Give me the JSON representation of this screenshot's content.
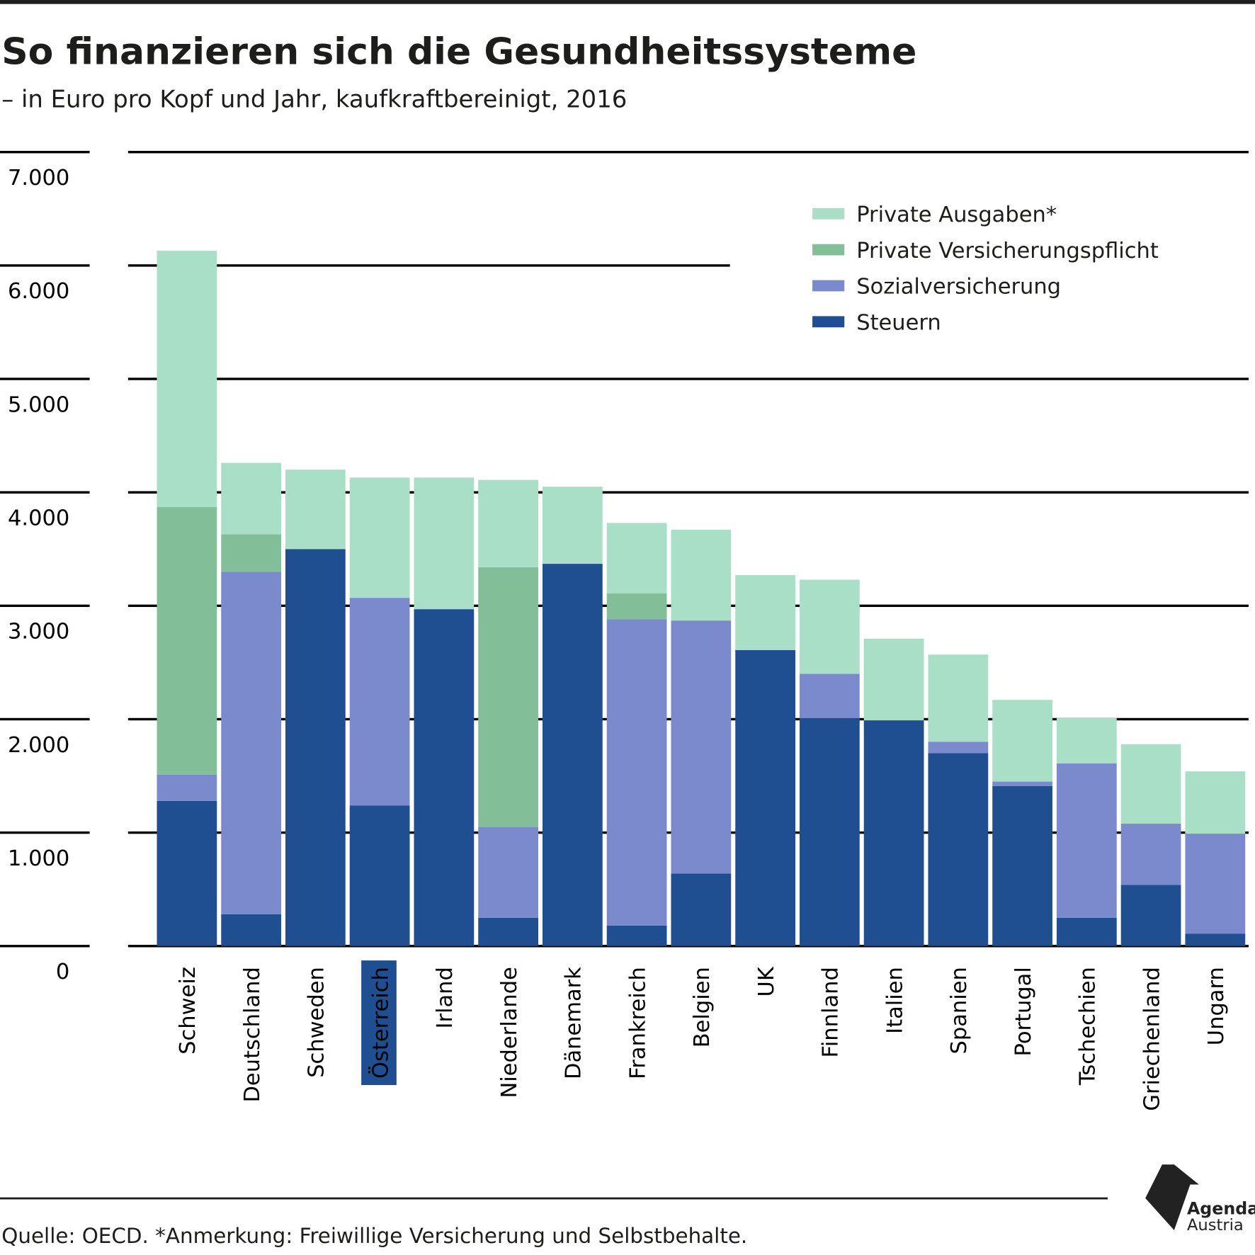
{
  "title": "So finanzieren sich die Gesundheitssysteme",
  "subtitle": "– in Euro pro Kopf und Jahr, kaufkraftbereinigt, 2016",
  "source": "Quelle: OECD. *Anmerkung: Freiwillige Versicherung und Selbstbehalte.",
  "logo": {
    "line1": "Agenda",
    "line2": "Austria"
  },
  "highlight": "Österreich",
  "colors": {
    "Private Ausgaben*": "#a8dfc6",
    "Private Versicherungspflicht": "#82bf98",
    "Sozialversicherung": "#7b8acd",
    "Steuern": "#1f4e91",
    "highlight_bg": "#1f4e91"
  },
  "chart_data": {
    "type": "bar",
    "stacked": true,
    "title": "So finanzieren sich die Gesundheitssysteme",
    "subtitle": "– in Euro pro Kopf und Jahr, kaufkraftbereinigt, 2016",
    "ylim": [
      0,
      7000
    ],
    "yticks": [
      0,
      1000,
      2000,
      3000,
      4000,
      5000,
      6000,
      7000
    ],
    "ytick_labels": [
      "0",
      "1.000",
      "2.000",
      "3.000",
      "4.000",
      "5.000",
      "6.000",
      "7.000"
    ],
    "grid": true,
    "legend_position": "top-right",
    "categories": [
      "Schweiz",
      "Deutschland",
      "Schweden",
      "Österreich",
      "Irland",
      "Niederlande",
      "Dänemark",
      "Frankreich",
      "Belgien",
      "UK",
      "Finnland",
      "Italien",
      "Spanien",
      "Portugal",
      "Tschechien",
      "Griechenland",
      "Ungarn"
    ],
    "series": [
      {
        "name": "Steuern",
        "values": [
          1280,
          280,
          3500,
          1240,
          2970,
          250,
          3370,
          180,
          640,
          2610,
          2010,
          1990,
          1700,
          1410,
          250,
          540,
          110
        ]
      },
      {
        "name": "Sozialversicherung",
        "values": [
          230,
          3020,
          0,
          1830,
          0,
          800,
          0,
          2700,
          2230,
          0,
          390,
          0,
          100,
          40,
          1360,
          540,
          880
        ]
      },
      {
        "name": "Private Versicherungspflicht",
        "values": [
          2360,
          330,
          0,
          0,
          0,
          2290,
          0,
          230,
          0,
          0,
          0,
          0,
          0,
          0,
          0,
          0,
          0
        ]
      },
      {
        "name": "Private Ausgaben*",
        "values": [
          2260,
          630,
          700,
          1060,
          1160,
          770,
          680,
          620,
          800,
          660,
          830,
          720,
          770,
          720,
          400,
          700,
          550
        ]
      }
    ],
    "legend_order": [
      "Private Ausgaben*",
      "Private Versicherungspflicht",
      "Sozialversicherung",
      "Steuern"
    ]
  }
}
